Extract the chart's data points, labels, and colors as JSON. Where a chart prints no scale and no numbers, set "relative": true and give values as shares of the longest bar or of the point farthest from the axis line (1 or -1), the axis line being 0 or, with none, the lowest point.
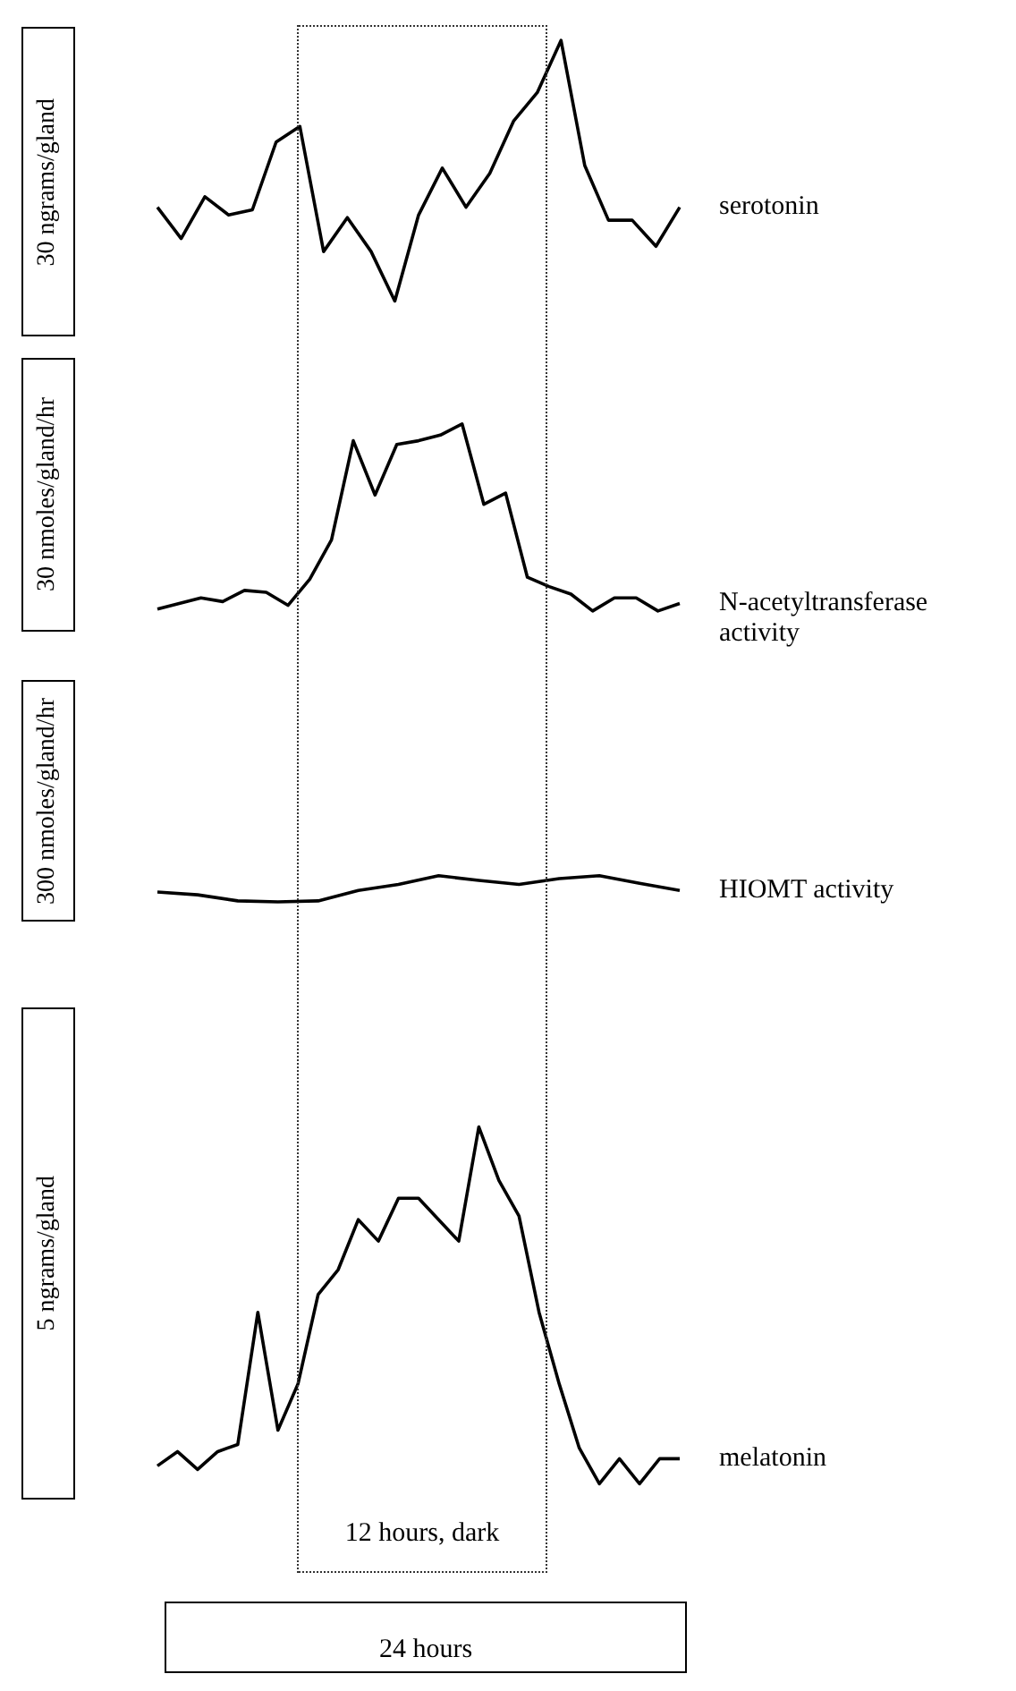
{
  "chart_data": [
    {
      "type": "line",
      "ylabel": "30 ngrams/gland",
      "relative": true,
      "marker": "none",
      "categories": [
        null,
        null,
        null,
        null,
        null,
        null,
        null,
        null,
        null,
        null,
        null,
        null,
        null,
        null,
        null,
        null,
        null,
        null,
        null,
        null,
        null,
        null,
        null
      ],
      "series": [
        {
          "name": "serotonin",
          "color": "#000000",
          "values": [
            0.36,
            0.24,
            0.4,
            0.33,
            0.35,
            0.61,
            0.67,
            0.19,
            0.32,
            0.19,
            0,
            0.33,
            0.51,
            0.36,
            0.49,
            0.69,
            0.8,
            1,
            0.52,
            0.31,
            0.31,
            0.21,
            0.36
          ]
        }
      ]
    },
    {
      "type": "line",
      "ylabel": "30 nmoles/gland/hr",
      "relative": true,
      "marker": "none",
      "categories": [
        null,
        null,
        null,
        null,
        null,
        null,
        null,
        null,
        null,
        null,
        null,
        null,
        null,
        null,
        null,
        null,
        null,
        null,
        null,
        null,
        null,
        null,
        null,
        null,
        null
      ],
      "series": [
        {
          "name": "N-acetyltransferase activity",
          "color": "#000000",
          "values": [
            0.01,
            0.04,
            0.07,
            0.05,
            0.11,
            0.1,
            0.03,
            0.17,
            0.38,
            0.91,
            0.62,
            0.89,
            0.91,
            0.94,
            1,
            0.57,
            0.63,
            0.18,
            0.13,
            0.09,
            0,
            0.07,
            0.07,
            0,
            0.04
          ]
        }
      ]
    },
    {
      "type": "line",
      "ylabel": "300 nmoles/gland/hr",
      "relative": true,
      "marker": "none",
      "categories": [
        null,
        null,
        null,
        null,
        null,
        null,
        null,
        null,
        null,
        null,
        null,
        null,
        null,
        null
      ],
      "series": [
        {
          "name": "HIOMT activity",
          "color": "#000000",
          "values": [
            0.38,
            0.27,
            0.04,
            0,
            0.04,
            0.44,
            0.67,
            1,
            0.82,
            0.67,
            0.89,
            1,
            0.71,
            0.44
          ]
        }
      ]
    },
    {
      "type": "line",
      "ylabel": "5 ngrams/gland",
      "relative": true,
      "marker": "none",
      "annotations": [
        "12 hours, dark",
        "24 hours"
      ],
      "categories": [
        null,
        null,
        null,
        null,
        null,
        null,
        null,
        null,
        null,
        null,
        null,
        null,
        null,
        null,
        null,
        null,
        null,
        null,
        null,
        null,
        null,
        null,
        null,
        null,
        null,
        null,
        null
      ],
      "series": [
        {
          "name": "melatonin",
          "color": "#000000",
          "values": [
            0.05,
            0.09,
            0.04,
            0.09,
            0.11,
            0.48,
            0.15,
            0.28,
            0.53,
            0.6,
            0.74,
            0.68,
            0.8,
            0.8,
            0.74,
            0.68,
            1,
            0.85,
            0.75,
            0.48,
            0.28,
            0.1,
            0,
            0.07,
            0,
            0.07,
            0.07
          ]
        }
      ]
    }
  ]
}
